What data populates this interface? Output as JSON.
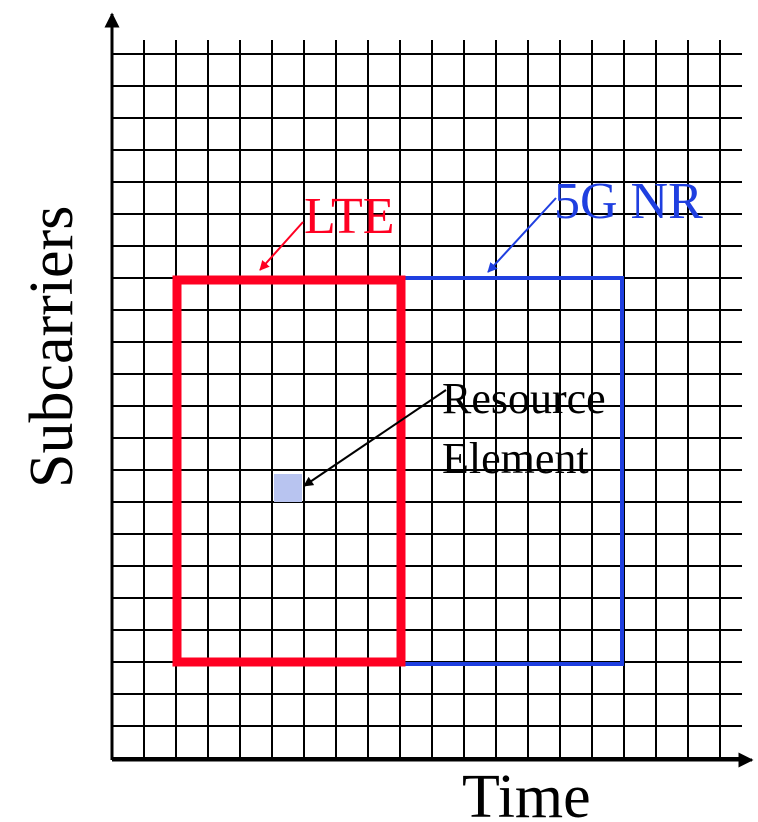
{
  "labels": {
    "y_axis": "Subcarriers",
    "x_axis": "Time",
    "lte": "LTE",
    "nr": "5G NR",
    "resource_line1": "Resource",
    "resource_line2": "Element"
  },
  "colors": {
    "lte": "#ff0022",
    "nr": "#1f3fe0",
    "resource_element": "#b8c4f0",
    "grid": "#000000"
  }
}
